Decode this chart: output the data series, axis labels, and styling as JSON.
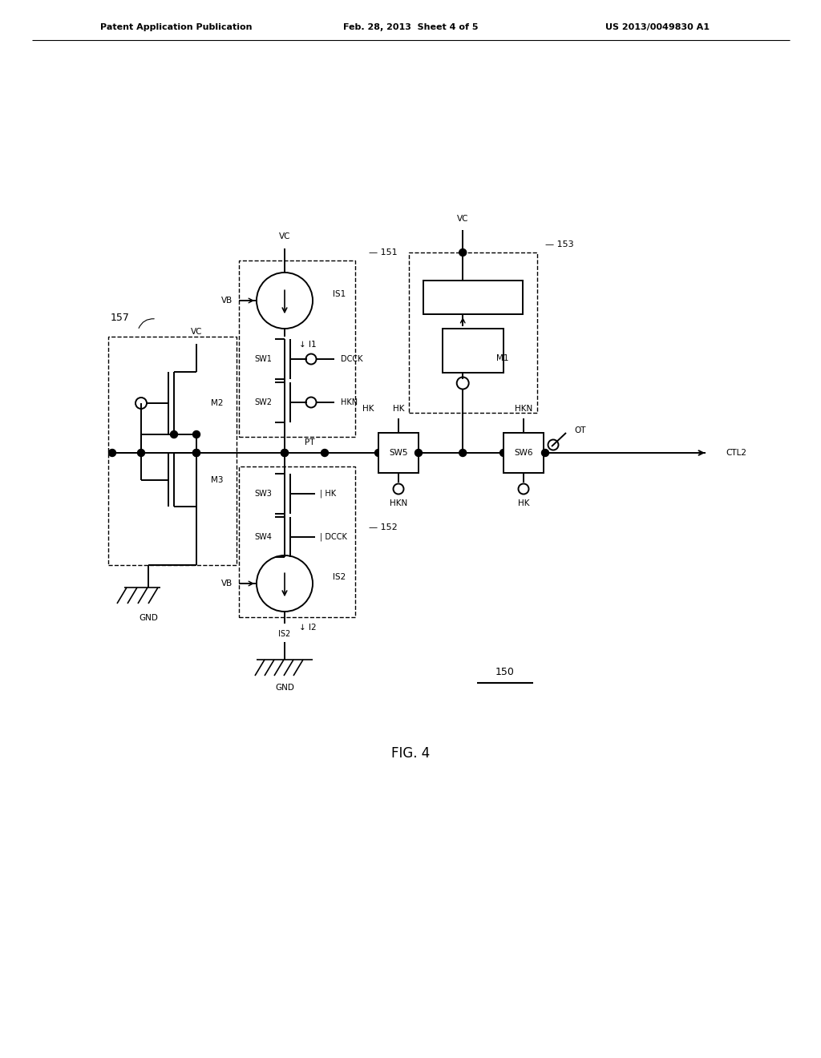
{
  "bg_color": "#ffffff",
  "fig_width": 10.24,
  "fig_height": 13.2,
  "header_left": "Patent Application Publication",
  "header_center": "Feb. 28, 2013  Sheet 4 of 5",
  "header_right": "US 2013/0049830 A1",
  "figure_label": "FIG. 4",
  "circuit_label": "150",
  "lw": 1.4
}
